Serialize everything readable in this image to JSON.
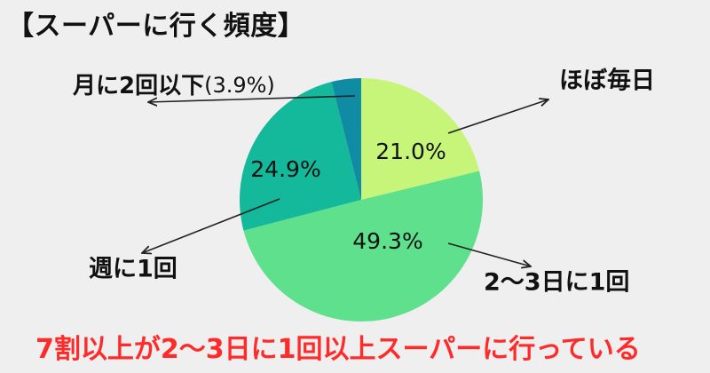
{
  "title": "【スーパーに行く頻度】",
  "footer_note": "7割以上が2〜3日に1回以上スーパーに行っている",
  "chart_data": {
    "type": "pie",
    "title": "【スーパーに行く頻度】",
    "start": "12 o'clock, clockwise",
    "slices": [
      {
        "label": "ほぼ毎日",
        "value": 21.0,
        "value_label": "21.0%",
        "color": "#c7f57a"
      },
      {
        "label": "2〜3日に1回",
        "value": 49.3,
        "value_label": "49.3%",
        "color": "#5ee08d"
      },
      {
        "label": "週に1回",
        "value": 24.9,
        "value_label": "24.9%",
        "color": "#14b89a"
      },
      {
        "label": "月に2回以下",
        "value": 3.9,
        "value_label": "(3.9%)",
        "color": "#0f8ba3"
      }
    ],
    "label_color": "#111111",
    "callout_color": "#222222"
  }
}
